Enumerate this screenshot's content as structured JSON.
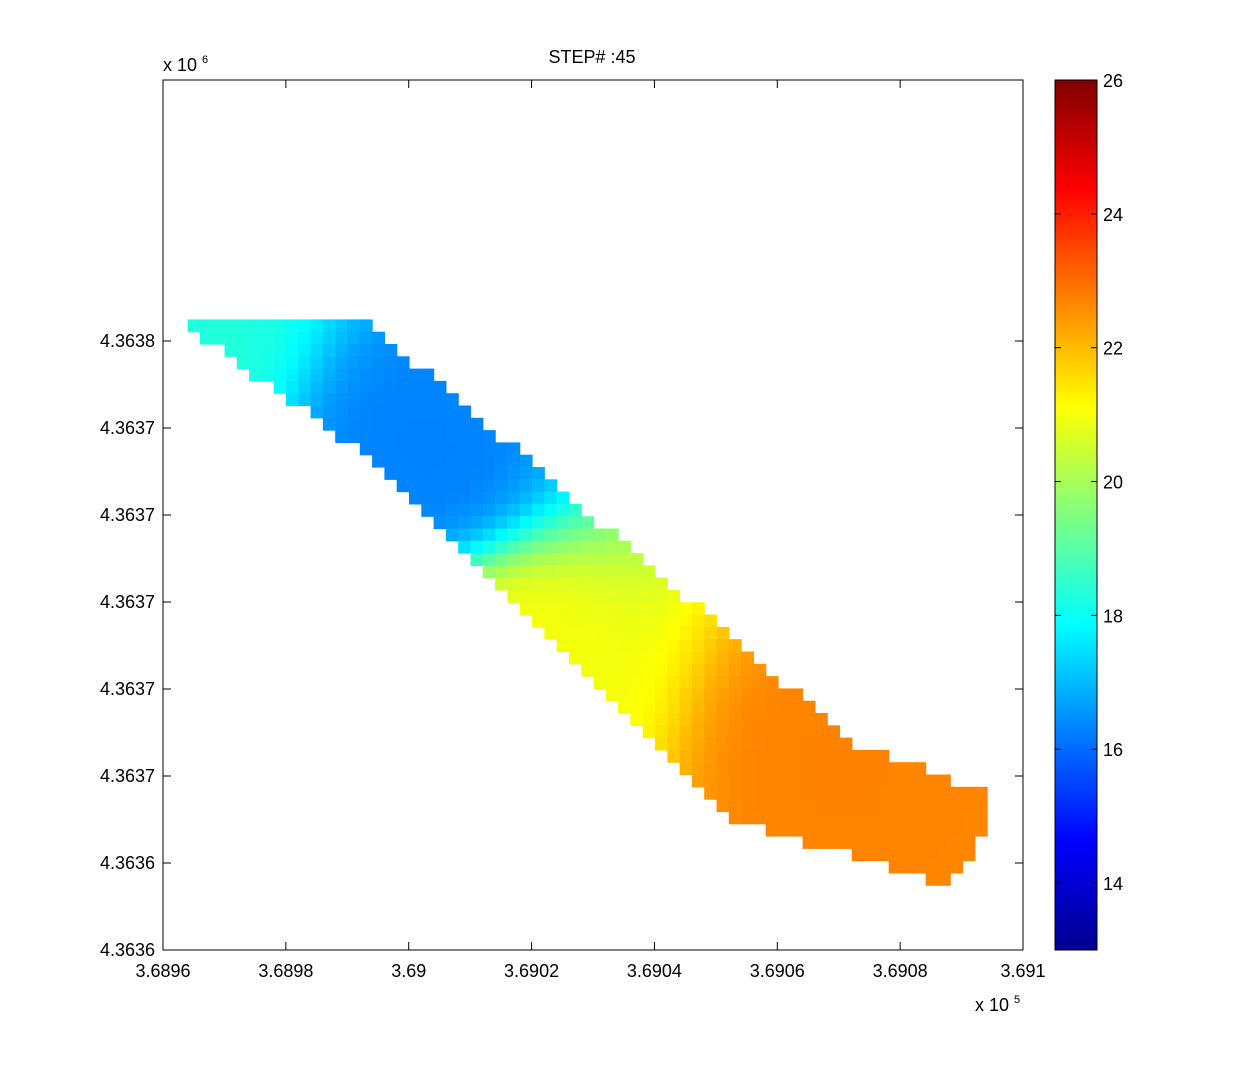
{
  "chart_data": {
    "type": "heatmap",
    "title": "STEP# :45",
    "xlabel": "",
    "ylabel": "",
    "x_multiplier": {
      "base": "x 10",
      "exp": "5"
    },
    "y_multiplier": {
      "base": "x 10",
      "exp": "6"
    },
    "xlim": [
      3.6896,
      3.691
    ],
    "x_ticks": [
      3.6896,
      3.6898,
      3.69,
      3.6902,
      3.6904,
      3.6906,
      3.6908,
      3.691
    ],
    "x_tick_labels": [
      "3.6896",
      "3.6898",
      "3.69",
      "3.6902",
      "3.6904",
      "3.6906",
      "3.6908",
      "3.691"
    ],
    "ylim": [
      4.3636,
      4.3638
    ],
    "y_ticks": [
      4.3636,
      4.36362,
      4.36364,
      4.36366,
      4.36368,
      4.3637,
      4.36372,
      4.36374
    ],
    "y_tick_labels": [
      "4.3636",
      "4.3636",
      "4.3637",
      "4.3637",
      "4.3637",
      "4.3637",
      "4.3637",
      "4.3638"
    ],
    "colorbar": {
      "colormap": "jet",
      "clim": [
        13,
        26
      ],
      "ticks": [
        14,
        16,
        18,
        20,
        22,
        24,
        26
      ],
      "tick_labels": [
        "14",
        "16",
        "18",
        "20",
        "22",
        "24",
        "26"
      ]
    },
    "grid": false,
    "domain": {
      "shape": "diagonal band from upper-left to lower-right",
      "corners_x": [
        3.68961,
        3.68992,
        3.69073,
        3.69095,
        3.69095,
        3.69087,
        3.69053,
        3.68994
      ],
      "corners_y": [
        4.363746,
        4.363746,
        4.363647,
        4.363636,
        4.363628,
        4.363615,
        4.36363,
        4.363713
      ]
    },
    "field_features": [
      {
        "kind": "minimum",
        "x": 3.69003,
        "y": 4.363715,
        "value": 16.3
      },
      {
        "kind": "maximum",
        "x": 3.6907,
        "y": 4.363642,
        "value": 22.7
      },
      {
        "kind": "northwest_edge",
        "x": 3.68962,
        "y": 4.363742,
        "value": 18.3
      },
      {
        "kind": "ridge",
        "x": 3.69018,
        "y": 4.363664,
        "value": 21.0
      }
    ]
  }
}
